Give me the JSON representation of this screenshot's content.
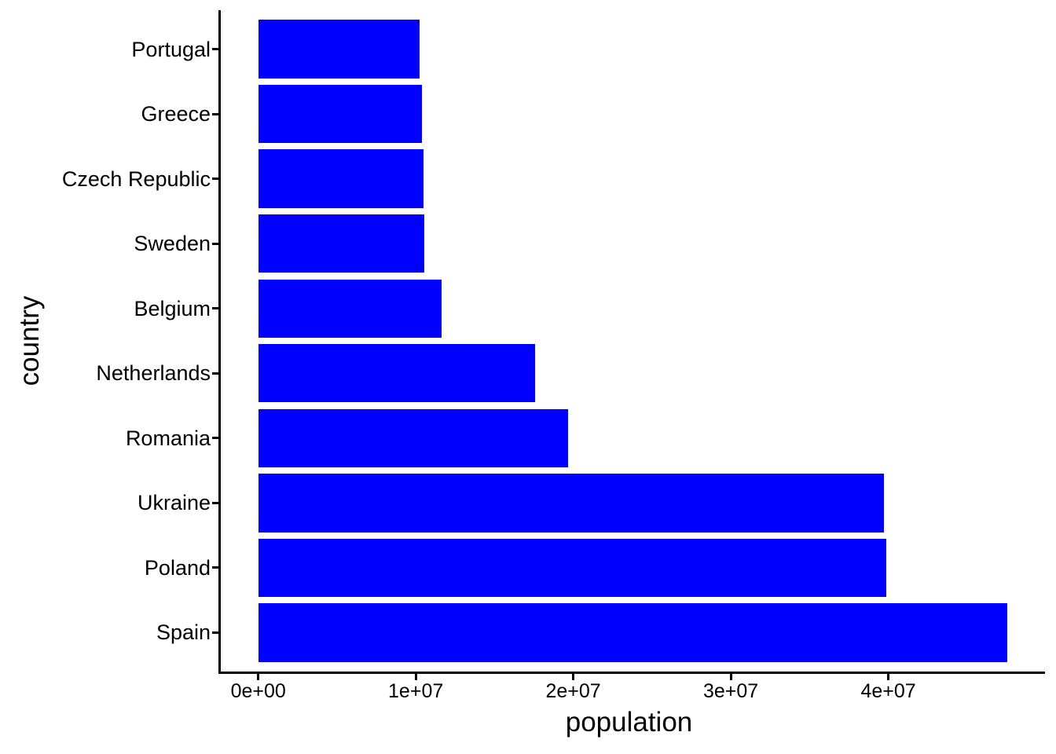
{
  "chart_data": {
    "type": "bar",
    "orientation": "horizontal",
    "title": "",
    "xlabel": "population",
    "ylabel": "country",
    "categories_top_to_bottom": [
      "Portugal",
      "Greece",
      "Czech Republic",
      "Sweden",
      "Belgium",
      "Netherlands",
      "Romania",
      "Ukraine",
      "Poland",
      "Spain"
    ],
    "values": [
      10260000,
      10410000,
      10510000,
      10560000,
      11660000,
      17580000,
      19680000,
      39700000,
      39850000,
      47570000
    ],
    "x_ticks": {
      "values": [
        0,
        10000000,
        20000000,
        30000000,
        40000000
      ],
      "labels": [
        "0e+00",
        "1e+07",
        "2e+07",
        "3e+07",
        "4e+07"
      ]
    },
    "xlim": [
      0,
      47570000
    ],
    "x_expansion": 0.05,
    "bar_width_fraction": 0.9,
    "grid": false,
    "legend": "none",
    "bar_color": "#0000ff",
    "axis_color": "#000000",
    "text_color": "#000000",
    "background": "#ffffff"
  }
}
